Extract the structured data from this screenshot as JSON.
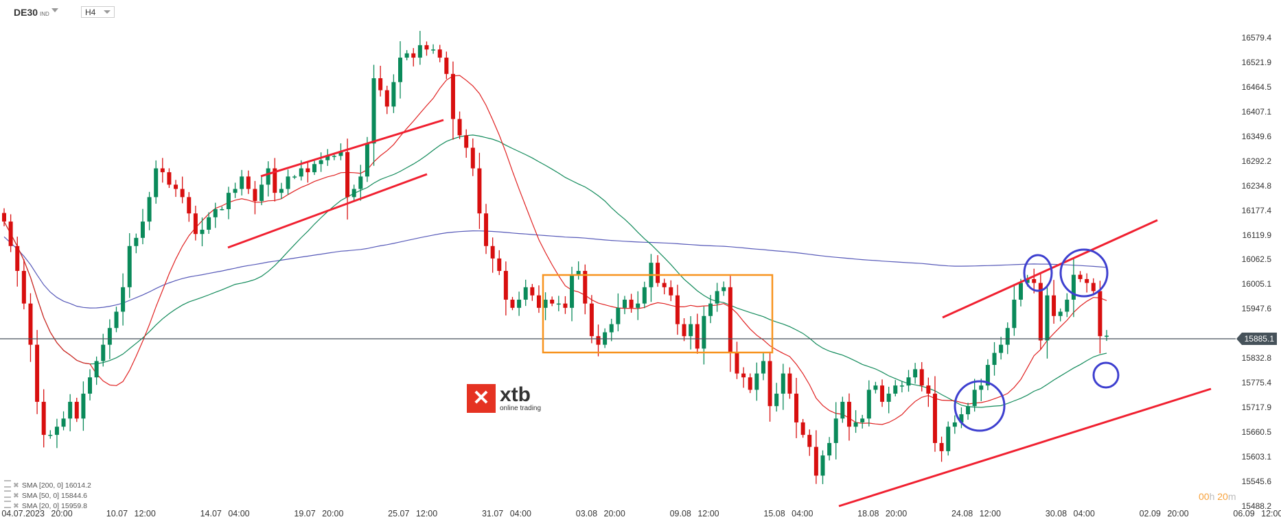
{
  "header": {
    "symbol": "DE30",
    "symbol_type": "IND",
    "timeframe": "H4"
  },
  "current_price": "15885.1",
  "timer": {
    "hours": "00",
    "h": "h",
    "minutes": "20",
    "m": "m"
  },
  "logo": {
    "text": "xtb",
    "sub": "online trading"
  },
  "legend": [
    {
      "label": "SMA [200, 0] 16014.2",
      "color": "#5558b8"
    },
    {
      "label": "SMA [50, 0] 15844.6",
      "color": "#118a5a"
    },
    {
      "label": "SMA [20, 0] 15959.8",
      "color": "#e02020"
    }
  ],
  "colors": {
    "up": "#0a8a5a",
    "down": "#d80f0f",
    "price_line": "#46525a",
    "trend": "#f02030",
    "box": "#f7931e",
    "circle": "#3d3fcf"
  },
  "chart_data": {
    "type": "candlestick",
    "title": "",
    "y_ticks": [
      "16579.4",
      "16521.9",
      "16464.5",
      "16407.1",
      "16349.6",
      "16292.2",
      "16234.8",
      "16177.4",
      "16119.9",
      "16062.5",
      "16005.1",
      "15947.6",
      "15885.1",
      "15832.8",
      "15775.4",
      "15717.9",
      "15660.5",
      "15603.1",
      "15545.6",
      "15488.2"
    ],
    "ylim": [
      15488.2,
      16579.4
    ],
    "x_ticks": [
      "04.07.2023  20:00",
      "10.07  12:00",
      "14.07  04:00",
      "19.07  20:00",
      "25.07  12:00",
      "31.07  04:00",
      "03.08  20:00",
      "09.08  12:00",
      "15.08  04:00",
      "18.08  20:00",
      "24.08  12:00",
      "30.08  04:00",
      "02.09  20:00",
      "06.09  12:00"
    ],
    "closes": [
      16151,
      16094,
      16036,
      15960,
      15864,
      15731,
      15654,
      15654,
      15673,
      15692,
      15731,
      15692,
      15750,
      15788,
      15826,
      15864,
      15903,
      15941,
      15998,
      16094,
      16113,
      16151,
      16208,
      16275,
      16266,
      16237,
      16227,
      16208,
      16170,
      16122,
      16132,
      16161,
      16180,
      16180,
      16218,
      16227,
      16256,
      16227,
      16199,
      16237,
      16275,
      16218,
      16227,
      16256,
      16256,
      16275,
      16266,
      16285,
      16294,
      16304,
      16304,
      16313,
      16208,
      16227,
      16256,
      16333,
      16485,
      16457,
      16419,
      16476,
      16533,
      16543,
      16533,
      16562,
      16552,
      16552,
      16533,
      16495,
      16390,
      16352,
      16323,
      16275,
      16170,
      16094,
      16065,
      16036,
      15969,
      15950,
      15969,
      15998,
      15979,
      15950,
      15969,
      15960,
      15960,
      15950,
      16027,
      16036,
      15960,
      15884,
      15864,
      15893,
      15912,
      15950,
      15969,
      15950,
      15960,
      15998,
      16055,
      16008,
      15998,
      15979,
      15912,
      15884,
      15912,
      15855,
      15931,
      15960,
      15989,
      15998,
      15845,
      15797,
      15788,
      15759,
      15797,
      15826,
      15721,
      15750,
      15797,
      15750,
      15683,
      15654,
      15626,
      15559,
      15606,
      15635,
      15692,
      15731,
      15673,
      15683,
      15692,
      15759,
      15769,
      15731,
      15750,
      15769,
      15769,
      15788,
      15807,
      15769,
      15750,
      15635,
      15616,
      15673,
      15683,
      15702,
      15721,
      15759,
      15769,
      15817,
      15845,
      15864,
      15903,
      15969,
      16008,
      16017,
      16008,
      15874,
      15979,
      15931,
      15941,
      15969,
      16027,
      16017,
      16008,
      15989,
      15884,
      15885
    ],
    "sma_periods": [
      200,
      50,
      20
    ]
  }
}
